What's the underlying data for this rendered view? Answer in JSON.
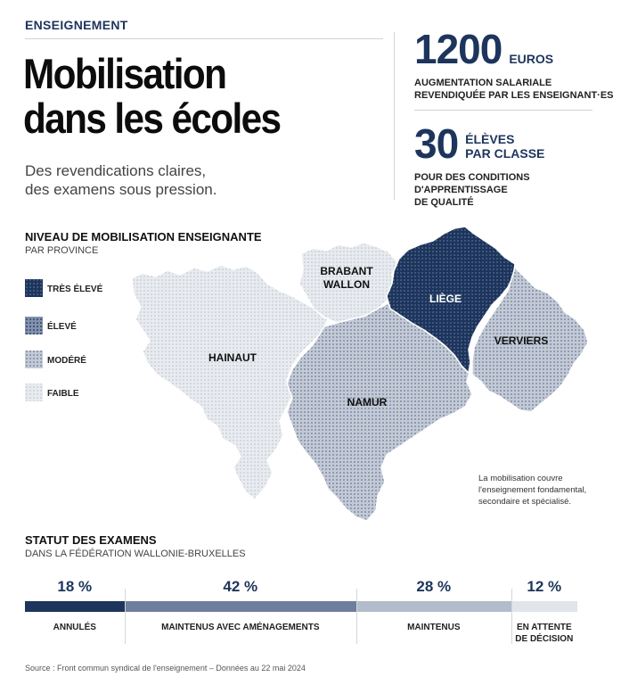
{
  "header": {
    "kicker": "ENSEIGNEMENT",
    "title_lines": [
      "Mobilisation",
      "dans les écoles"
    ],
    "subtitle_lines": [
      "Des revendications claires,",
      "des examens sous pression."
    ]
  },
  "stats": [
    {
      "number": "1200",
      "unit": "EUROS",
      "unit_lines": [
        "EUROS"
      ],
      "desc_lines": [
        "AUGMENTATION SALARIALE",
        "REVENDIQUÉE PAR LES ENSEIGNANT·ES"
      ]
    },
    {
      "number": "30",
      "unit_lines": [
        "ÉLÈVES",
        "PAR CLASSE"
      ],
      "desc_lines": [
        "POUR DES CONDITIONS D'APPRENTISSAGE",
        "DE QUALITÉ"
      ]
    }
  ],
  "map": {
    "title": "NIVEAU DE MOBILISATION ENSEIGNANTE",
    "subtitle": "PAR PROVINCE",
    "legend": [
      {
        "label": "TRÈS ÉLEVÉ",
        "level": "tres-eleve",
        "color": "#1d355c"
      },
      {
        "label": "ÉLEVÉ",
        "level": "eleve",
        "color": "#6d7f9c"
      },
      {
        "label": "MODÉRÉ",
        "level": "modere",
        "color": "#a7b0c0"
      },
      {
        "label": "FAIBLE",
        "level": "faible",
        "color": "#d9dde4"
      }
    ],
    "provinces": [
      {
        "name": "HAINAUT",
        "name_lines": [
          "HAINAUT"
        ],
        "level": "faible"
      },
      {
        "name": "BRABANT WALLON",
        "name_lines": [
          "BRABANT",
          "WALLON"
        ],
        "level": "faible"
      },
      {
        "name": "NAMUR",
        "name_lines": [
          "NAMUR"
        ],
        "level": "modere"
      },
      {
        "name": "LIÈGE",
        "name_lines": [
          "LIÈGE"
        ],
        "level": "tres-eleve"
      },
      {
        "name": "VERVIERS",
        "name_lines": [
          "VERVIERS"
        ],
        "level": "modere"
      }
    ],
    "note_lines": [
      "La mobilisation couvre",
      "l'enseignement fondamental,",
      "secondaire et spécialisé."
    ]
  },
  "exams": {
    "title": "STATUT DES EXAMENS",
    "subtitle": "DANS LA FÉDÉRATION WALLONIE-BRUXELLES",
    "chart_data": {
      "type": "bar",
      "stacked": true,
      "categories": [
        "ANNULÉS",
        "MAINTENUS AVEC AMÉNAGEMENTS",
        "MAINTENUS",
        "EN ATTENTE DE DÉCISION"
      ],
      "values": [
        18,
        42,
        28,
        12
      ],
      "value_labels": [
        "18 %",
        "42 %",
        "28 %",
        "12 %"
      ],
      "label_lines": [
        [
          "ANNULÉS"
        ],
        [
          "MAINTENUS AVEC AMÉNAGEMENTS"
        ],
        [
          "MAINTENUS"
        ],
        [
          "EN ATTENTE",
          "DE DÉCISION"
        ]
      ],
      "colors": [
        "#1d355c",
        "#6d7f9c",
        "#b3bccb",
        "#e1e4e9"
      ]
    }
  },
  "source": "Source : Front commun syndical de l'enseignement – Données au 22 mai 2024"
}
